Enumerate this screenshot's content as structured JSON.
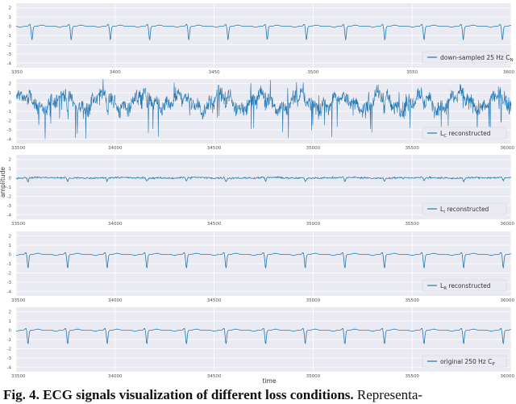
{
  "chart_data": [
    {
      "type": "line",
      "panel": 1,
      "signal": "ecg",
      "variant": "clean",
      "series": [
        {
          "name": "down-sampled 25 Hz C_N",
          "name_main": "down-sampled 25 Hz C",
          "name_sub": "N"
        }
      ],
      "x_ticks": [
        "3350",
        "3400",
        "3450",
        "3500",
        "3550",
        "3600"
      ],
      "xlim": [
        3350,
        3600
      ],
      "period": 19.8,
      "phase": 3358,
      "y_ticks": [
        "2",
        "1",
        "0",
        "-1",
        "-2",
        "-3",
        "-4"
      ],
      "ylim": [
        -4.5,
        2.5
      ],
      "xlabel": "",
      "ylabel": "",
      "grid": true,
      "legend_position": "lower-right",
      "color": "#1f77b4"
    },
    {
      "type": "line",
      "panel": 2,
      "signal": "ecg",
      "variant": "noisy",
      "series": [
        {
          "name": "L_C reconstructed",
          "name_main": "L",
          "name_sub": "C",
          "name_rest": " reconstructed"
        }
      ],
      "x_ticks": [
        "33500",
        "34000",
        "34500",
        "35000",
        "35500",
        "36000"
      ],
      "xlim": [
        33500,
        36000
      ],
      "period": 200,
      "phase": 33560,
      "y_ticks": [
        "2",
        "1",
        "0",
        "-1",
        "-2",
        "-3",
        "-4"
      ],
      "ylim": [
        -4.5,
        2.5
      ],
      "xlabel": "",
      "ylabel": "",
      "grid": true,
      "legend_position": "lower-right",
      "color": "#1f77b4"
    },
    {
      "type": "line",
      "panel": 3,
      "signal": "ecg",
      "variant": "jitter",
      "series": [
        {
          "name": "L_I reconstructed",
          "name_main": "L",
          "name_sub": "I",
          "name_rest": " reconstructed"
        }
      ],
      "x_ticks": [
        "33500",
        "34000",
        "34500",
        "35000",
        "35500",
        "36000"
      ],
      "xlim": [
        33500,
        36000
      ],
      "period": 200,
      "phase": 33560,
      "y_ticks": [
        "2",
        "1",
        "0",
        "-1",
        "-2",
        "-3",
        "-4"
      ],
      "ylim": [
        -4.5,
        2.5
      ],
      "xlabel": "",
      "ylabel": "amplitude",
      "grid": true,
      "legend_position": "lower-right",
      "color": "#1f77b4"
    },
    {
      "type": "line",
      "panel": 4,
      "signal": "ecg",
      "variant": "clean",
      "series": [
        {
          "name": "L_R reconstructed",
          "name_main": "L",
          "name_sub": "R",
          "name_rest": " reconstructed"
        }
      ],
      "x_ticks": [
        "33500",
        "34000",
        "34500",
        "35000",
        "35500",
        "36000"
      ],
      "xlim": [
        33500,
        36000
      ],
      "period": 200,
      "phase": 33560,
      "y_ticks": [
        "2",
        "1",
        "0",
        "-1",
        "-2",
        "-3",
        "-4"
      ],
      "ylim": [
        -4.5,
        2.5
      ],
      "xlabel": "",
      "ylabel": "",
      "grid": true,
      "legend_position": "lower-right",
      "color": "#1f77b4"
    },
    {
      "type": "line",
      "panel": 5,
      "signal": "ecg",
      "variant": "clean",
      "series": [
        {
          "name": "original 250 Hz C_P",
          "name_main": "original 250 Hz C",
          "name_sub": "P"
        }
      ],
      "x_ticks": [
        "33500",
        "34000",
        "34500",
        "35000",
        "35500",
        "36000"
      ],
      "xlim": [
        33500,
        36000
      ],
      "period": 200,
      "phase": 33560,
      "y_ticks": [
        "2",
        "1",
        "0",
        "-1",
        "-2",
        "-3",
        "-4"
      ],
      "ylim": [
        -4.5,
        2.5
      ],
      "xlabel": "time",
      "ylabel": "",
      "grid": true,
      "legend_position": "lower-right",
      "color": "#1f77b4"
    }
  ],
  "caption": {
    "label": "Fig. 4. ECG signals visualization of different loss conditions.",
    "text": " Representa-"
  },
  "colors": {
    "panel_background": "#eaeaf2",
    "grid": "#ffffff",
    "line": "#1f77b4"
  }
}
